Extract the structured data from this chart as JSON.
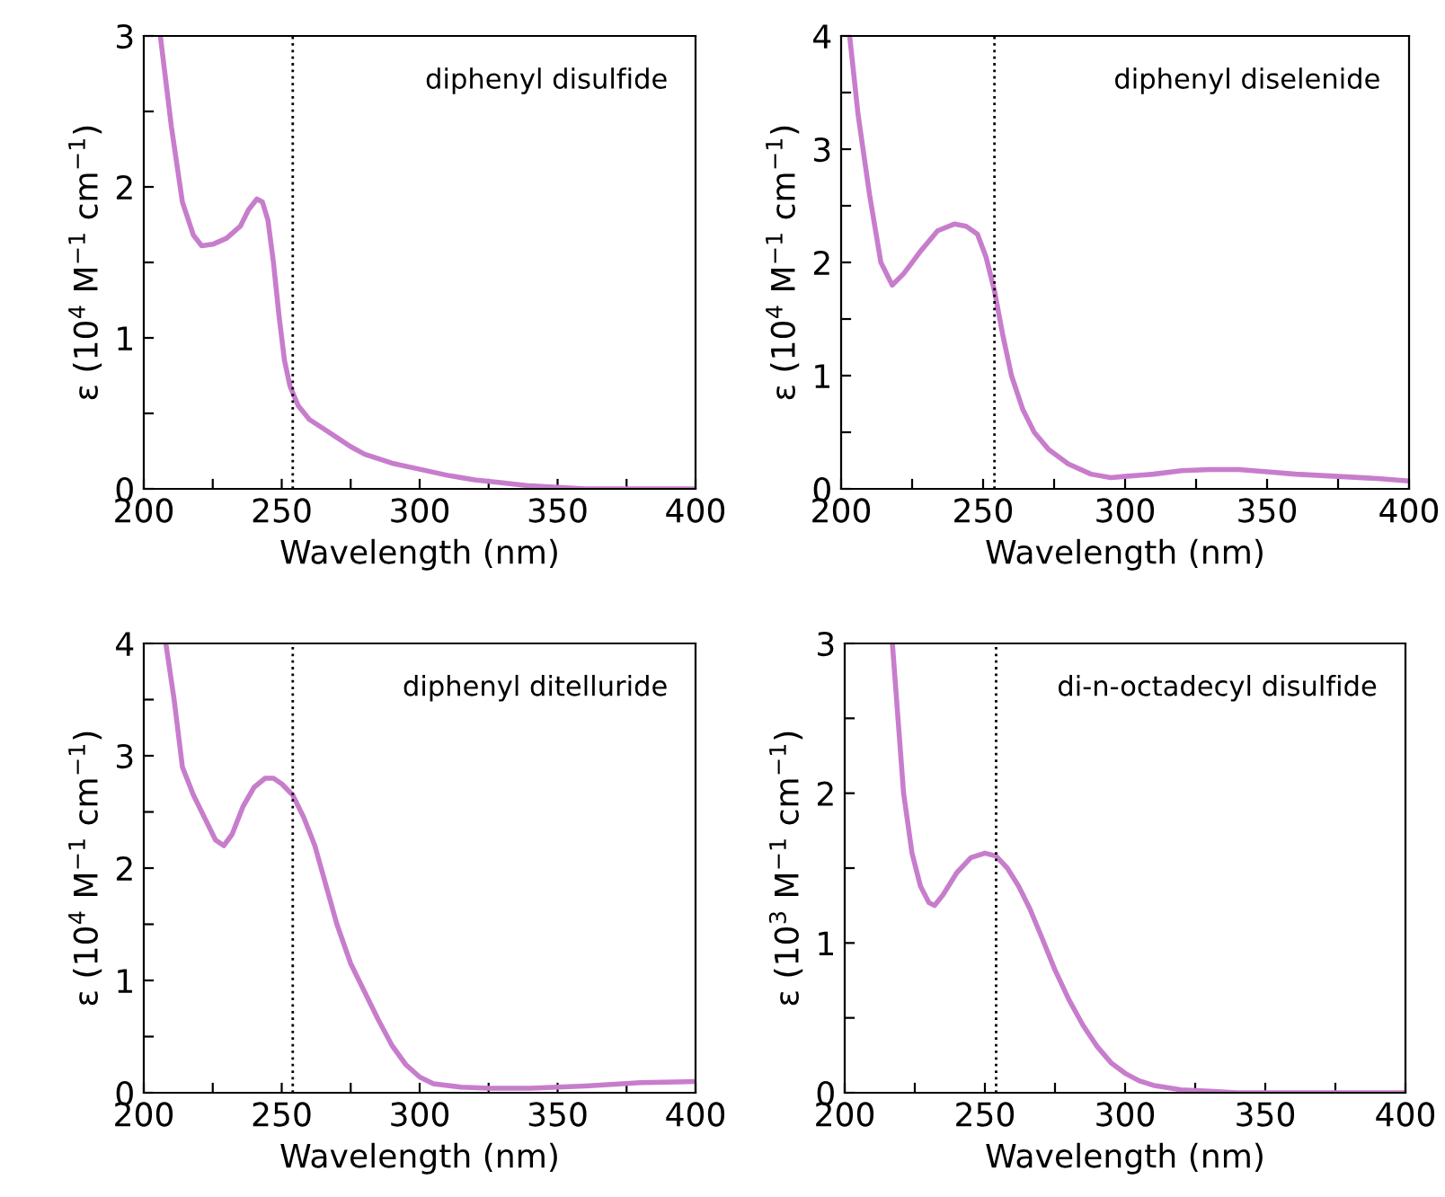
{
  "chart_data": [
    {
      "type": "line",
      "xlabel": "Wavelength (nm)",
      "ylabel": "ε (10$^{4}$ M$^{−1}$ cm$^{−1}$)",
      "annotations": [
        "diphenyl disulfide"
      ],
      "xlim": [
        200,
        400
      ],
      "ylim": [
        0,
        3
      ],
      "xticks": [
        200,
        {
          "value": 225,
          "label": null
        },
        250,
        {
          "value": 275,
          "label": null
        },
        300,
        {
          "value": 325,
          "label": null
        },
        350,
        {
          "value": 375,
          "label": null
        },
        400
      ],
      "yticks": [
        0,
        {
          "value": 0.5,
          "label": null
        },
        1,
        {
          "value": 1.5,
          "label": null
        },
        2,
        {
          "value": 2.5,
          "label": null
        },
        3
      ],
      "ref_lines": [
        {
          "axis": "x",
          "value": 254,
          "color": "#000000",
          "line_style": "dotted"
        }
      ],
      "series": [
        {
          "color": "#c77dcc",
          "x": [
            206,
            210,
            214,
            218,
            221,
            225,
            230,
            235,
            238,
            241,
            243,
            245,
            247,
            249,
            251,
            253,
            256,
            260,
            265,
            270,
            275,
            280,
            285,
            290,
            300,
            310,
            320,
            330,
            340,
            350,
            360,
            380,
            400
          ],
          "values": [
            3.0,
            2.4,
            1.9,
            1.68,
            1.61,
            1.62,
            1.66,
            1.74,
            1.85,
            1.92,
            1.9,
            1.78,
            1.5,
            1.15,
            0.85,
            0.68,
            0.55,
            0.46,
            0.4,
            0.34,
            0.28,
            0.23,
            0.2,
            0.17,
            0.13,
            0.09,
            0.06,
            0.04,
            0.02,
            0.01,
            0.0,
            0.0,
            0.0
          ]
        }
      ]
    },
    {
      "type": "line",
      "xlabel": "Wavelength (nm)",
      "ylabel": "ε (10$^{4}$ M$^{−1}$ cm$^{−1}$)",
      "annotations": [
        "diphenyl diselenide"
      ],
      "xlim": [
        200,
        400
      ],
      "ylim": [
        0,
        4
      ],
      "xticks": [
        200,
        {
          "value": 225,
          "label": null
        },
        250,
        {
          "value": 275,
          "label": null
        },
        300,
        {
          "value": 325,
          "label": null
        },
        350,
        {
          "value": 375,
          "label": null
        },
        400
      ],
      "yticks": [
        0,
        {
          "value": 0.5,
          "label": null
        },
        1,
        {
          "value": 1.5,
          "label": null
        },
        2,
        {
          "value": 2.5,
          "label": null
        },
        3,
        {
          "value": 3.5,
          "label": null
        },
        4
      ],
      "ref_lines": [
        {
          "axis": "x",
          "value": 254,
          "color": "#000000",
          "line_style": "dotted"
        }
      ],
      "series": [
        {
          "color": "#c77dcc",
          "x": [
            203,
            206,
            210,
            214,
            218,
            222,
            228,
            234,
            240,
            244,
            248,
            251,
            254,
            257,
            260,
            264,
            268,
            273,
            280,
            288,
            295,
            300,
            310,
            320,
            330,
            340,
            350,
            360,
            375,
            390,
            400
          ],
          "values": [
            4.0,
            3.3,
            2.6,
            2.0,
            1.8,
            1.9,
            2.1,
            2.28,
            2.34,
            2.32,
            2.25,
            2.05,
            1.75,
            1.35,
            1.0,
            0.7,
            0.5,
            0.35,
            0.22,
            0.13,
            0.1,
            0.11,
            0.13,
            0.16,
            0.17,
            0.17,
            0.15,
            0.13,
            0.11,
            0.09,
            0.07
          ]
        }
      ]
    },
    {
      "type": "line",
      "xlabel": "Wavelength (nm)",
      "ylabel": "ε (10$^{4}$ M$^{−1}$ cm$^{−1}$)",
      "annotations": [
        "diphenyl ditelluride"
      ],
      "xlim": [
        200,
        400
      ],
      "ylim": [
        0,
        4
      ],
      "xticks": [
        200,
        {
          "value": 225,
          "label": null
        },
        250,
        {
          "value": 275,
          "label": null
        },
        300,
        {
          "value": 325,
          "label": null
        },
        350,
        {
          "value": 375,
          "label": null
        },
        400
      ],
      "yticks": [
        0,
        {
          "value": 0.5,
          "label": null
        },
        1,
        {
          "value": 1.5,
          "label": null
        },
        2,
        {
          "value": 2.5,
          "label": null
        },
        3,
        {
          "value": 3.5,
          "label": null
        },
        4
      ],
      "ref_lines": [
        {
          "axis": "x",
          "value": 254,
          "color": "#000000",
          "line_style": "dotted"
        }
      ],
      "series": [
        {
          "color": "#c77dcc",
          "x": [
            208,
            211,
            214,
            218,
            222,
            226,
            229,
            232,
            236,
            240,
            244,
            247,
            250,
            254,
            258,
            262,
            266,
            270,
            275,
            280,
            285,
            290,
            295,
            300,
            305,
            315,
            325,
            340,
            360,
            380,
            400
          ],
          "values": [
            4.0,
            3.5,
            2.9,
            2.65,
            2.45,
            2.25,
            2.2,
            2.3,
            2.55,
            2.72,
            2.8,
            2.8,
            2.75,
            2.65,
            2.45,
            2.2,
            1.85,
            1.5,
            1.15,
            0.9,
            0.65,
            0.42,
            0.25,
            0.14,
            0.08,
            0.05,
            0.04,
            0.04,
            0.06,
            0.09,
            0.1
          ]
        }
      ]
    },
    {
      "type": "line",
      "xlabel": "Wavelength (nm)",
      "ylabel": "ε (10$^{3}$ M$^{−1}$ cm$^{−1}$)",
      "annotations": [
        "di-n-octadecyl disulfide"
      ],
      "xlim": [
        200,
        400
      ],
      "ylim": [
        0,
        3
      ],
      "xticks": [
        200,
        {
          "value": 225,
          "label": null
        },
        250,
        {
          "value": 275,
          "label": null
        },
        300,
        {
          "value": 325,
          "label": null
        },
        350,
        {
          "value": 375,
          "label": null
        },
        400
      ],
      "yticks": [
        0,
        {
          "value": 0.5,
          "label": null
        },
        1,
        {
          "value": 1.5,
          "label": null
        },
        2,
        {
          "value": 2.5,
          "label": null
        },
        3
      ],
      "ref_lines": [
        {
          "axis": "x",
          "value": 254,
          "color": "#000000",
          "line_style": "dotted"
        }
      ],
      "series": [
        {
          "color": "#c77dcc",
          "x": [
            217,
            219,
            221,
            224,
            227,
            230,
            232,
            235,
            240,
            245,
            250,
            254,
            258,
            262,
            266,
            270,
            275,
            280,
            285,
            290,
            295,
            300,
            305,
            310,
            320,
            330,
            340,
            360,
            400
          ],
          "values": [
            3.0,
            2.5,
            2.0,
            1.6,
            1.38,
            1.27,
            1.25,
            1.32,
            1.47,
            1.57,
            1.6,
            1.58,
            1.5,
            1.38,
            1.23,
            1.05,
            0.82,
            0.62,
            0.45,
            0.31,
            0.2,
            0.13,
            0.08,
            0.05,
            0.02,
            0.01,
            0,
            0,
            0
          ]
        }
      ]
    }
  ]
}
